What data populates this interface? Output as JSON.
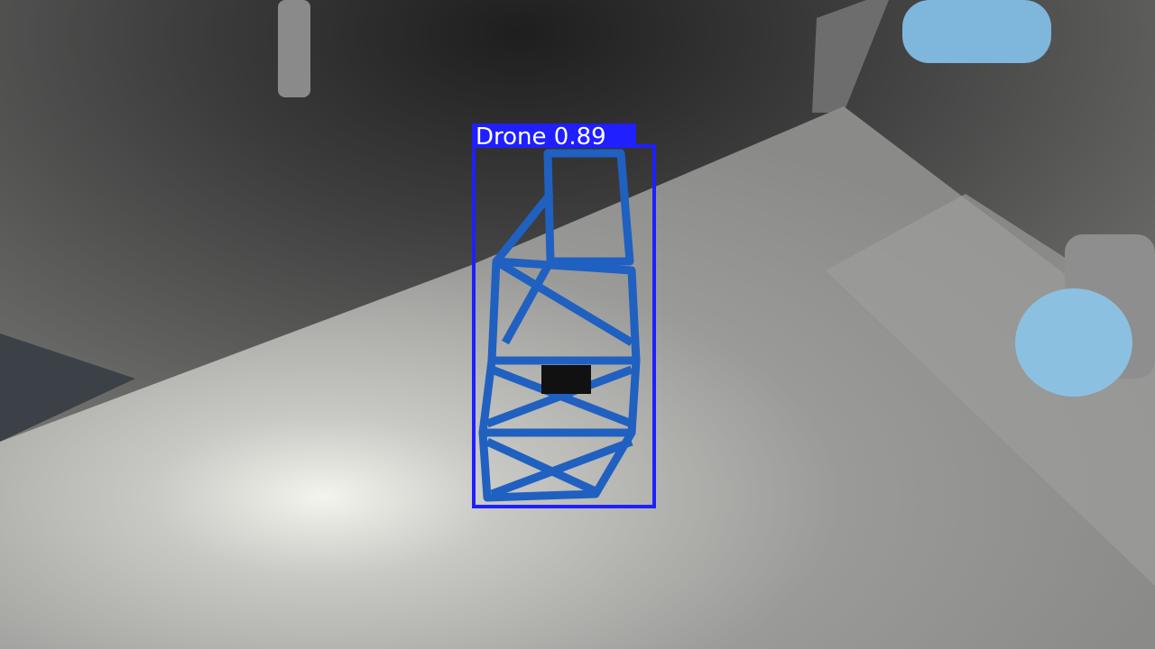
{
  "detections": [
    {
      "label": "Drone",
      "confidence": 0.89
    }
  ]
}
